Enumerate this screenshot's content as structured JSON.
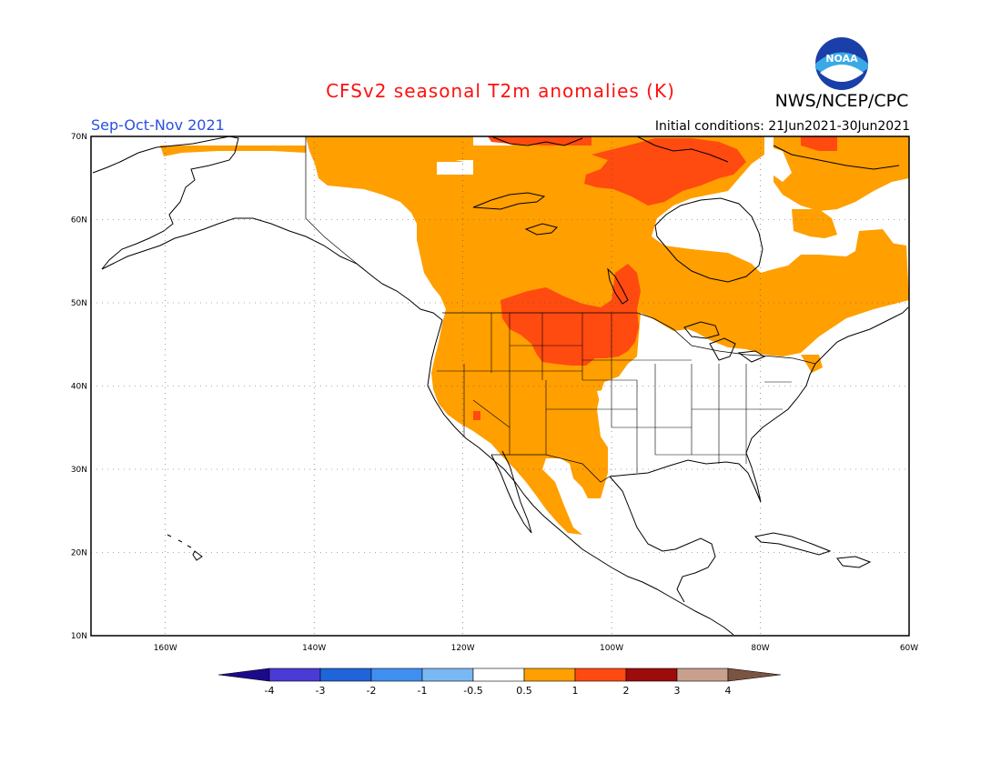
{
  "header": {
    "title": "CFSv2 seasonal T2m anomalies (K)",
    "organization": "NWS/NCEP/CPC",
    "logo_text": "NOAA",
    "season": "Sep-Oct-Nov 2021",
    "initial_conditions": "Initial conditions: 21Jun2021-30Jun2021"
  },
  "map": {
    "lat_labels": [
      "70N",
      "60N",
      "50N",
      "40N",
      "30N",
      "20N",
      "10N"
    ],
    "lon_labels": [
      "160W",
      "140W",
      "120W",
      "100W",
      "80W",
      "60W"
    ],
    "lat_range": [
      10,
      70
    ],
    "lon_range": [
      -170,
      -60
    ]
  },
  "colorbar": {
    "labels": [
      "-4",
      "-3",
      "-2",
      "-1",
      "-0.5",
      "0.5",
      "1",
      "2",
      "3",
      "4"
    ],
    "colors": [
      "#1b0a8c",
      "#4a3bd6",
      "#1f64d9",
      "#3f8ff0",
      "#7ab8f3",
      "#ffffff",
      "#ff9f00",
      "#ff4a10",
      "#9e0b0b",
      "#c8a08d",
      "#7a5443"
    ]
  },
  "anomaly_colors": {
    "warm_0_5_to_1": "#ff9f00",
    "warm_1_to_2": "#ff4a10"
  }
}
